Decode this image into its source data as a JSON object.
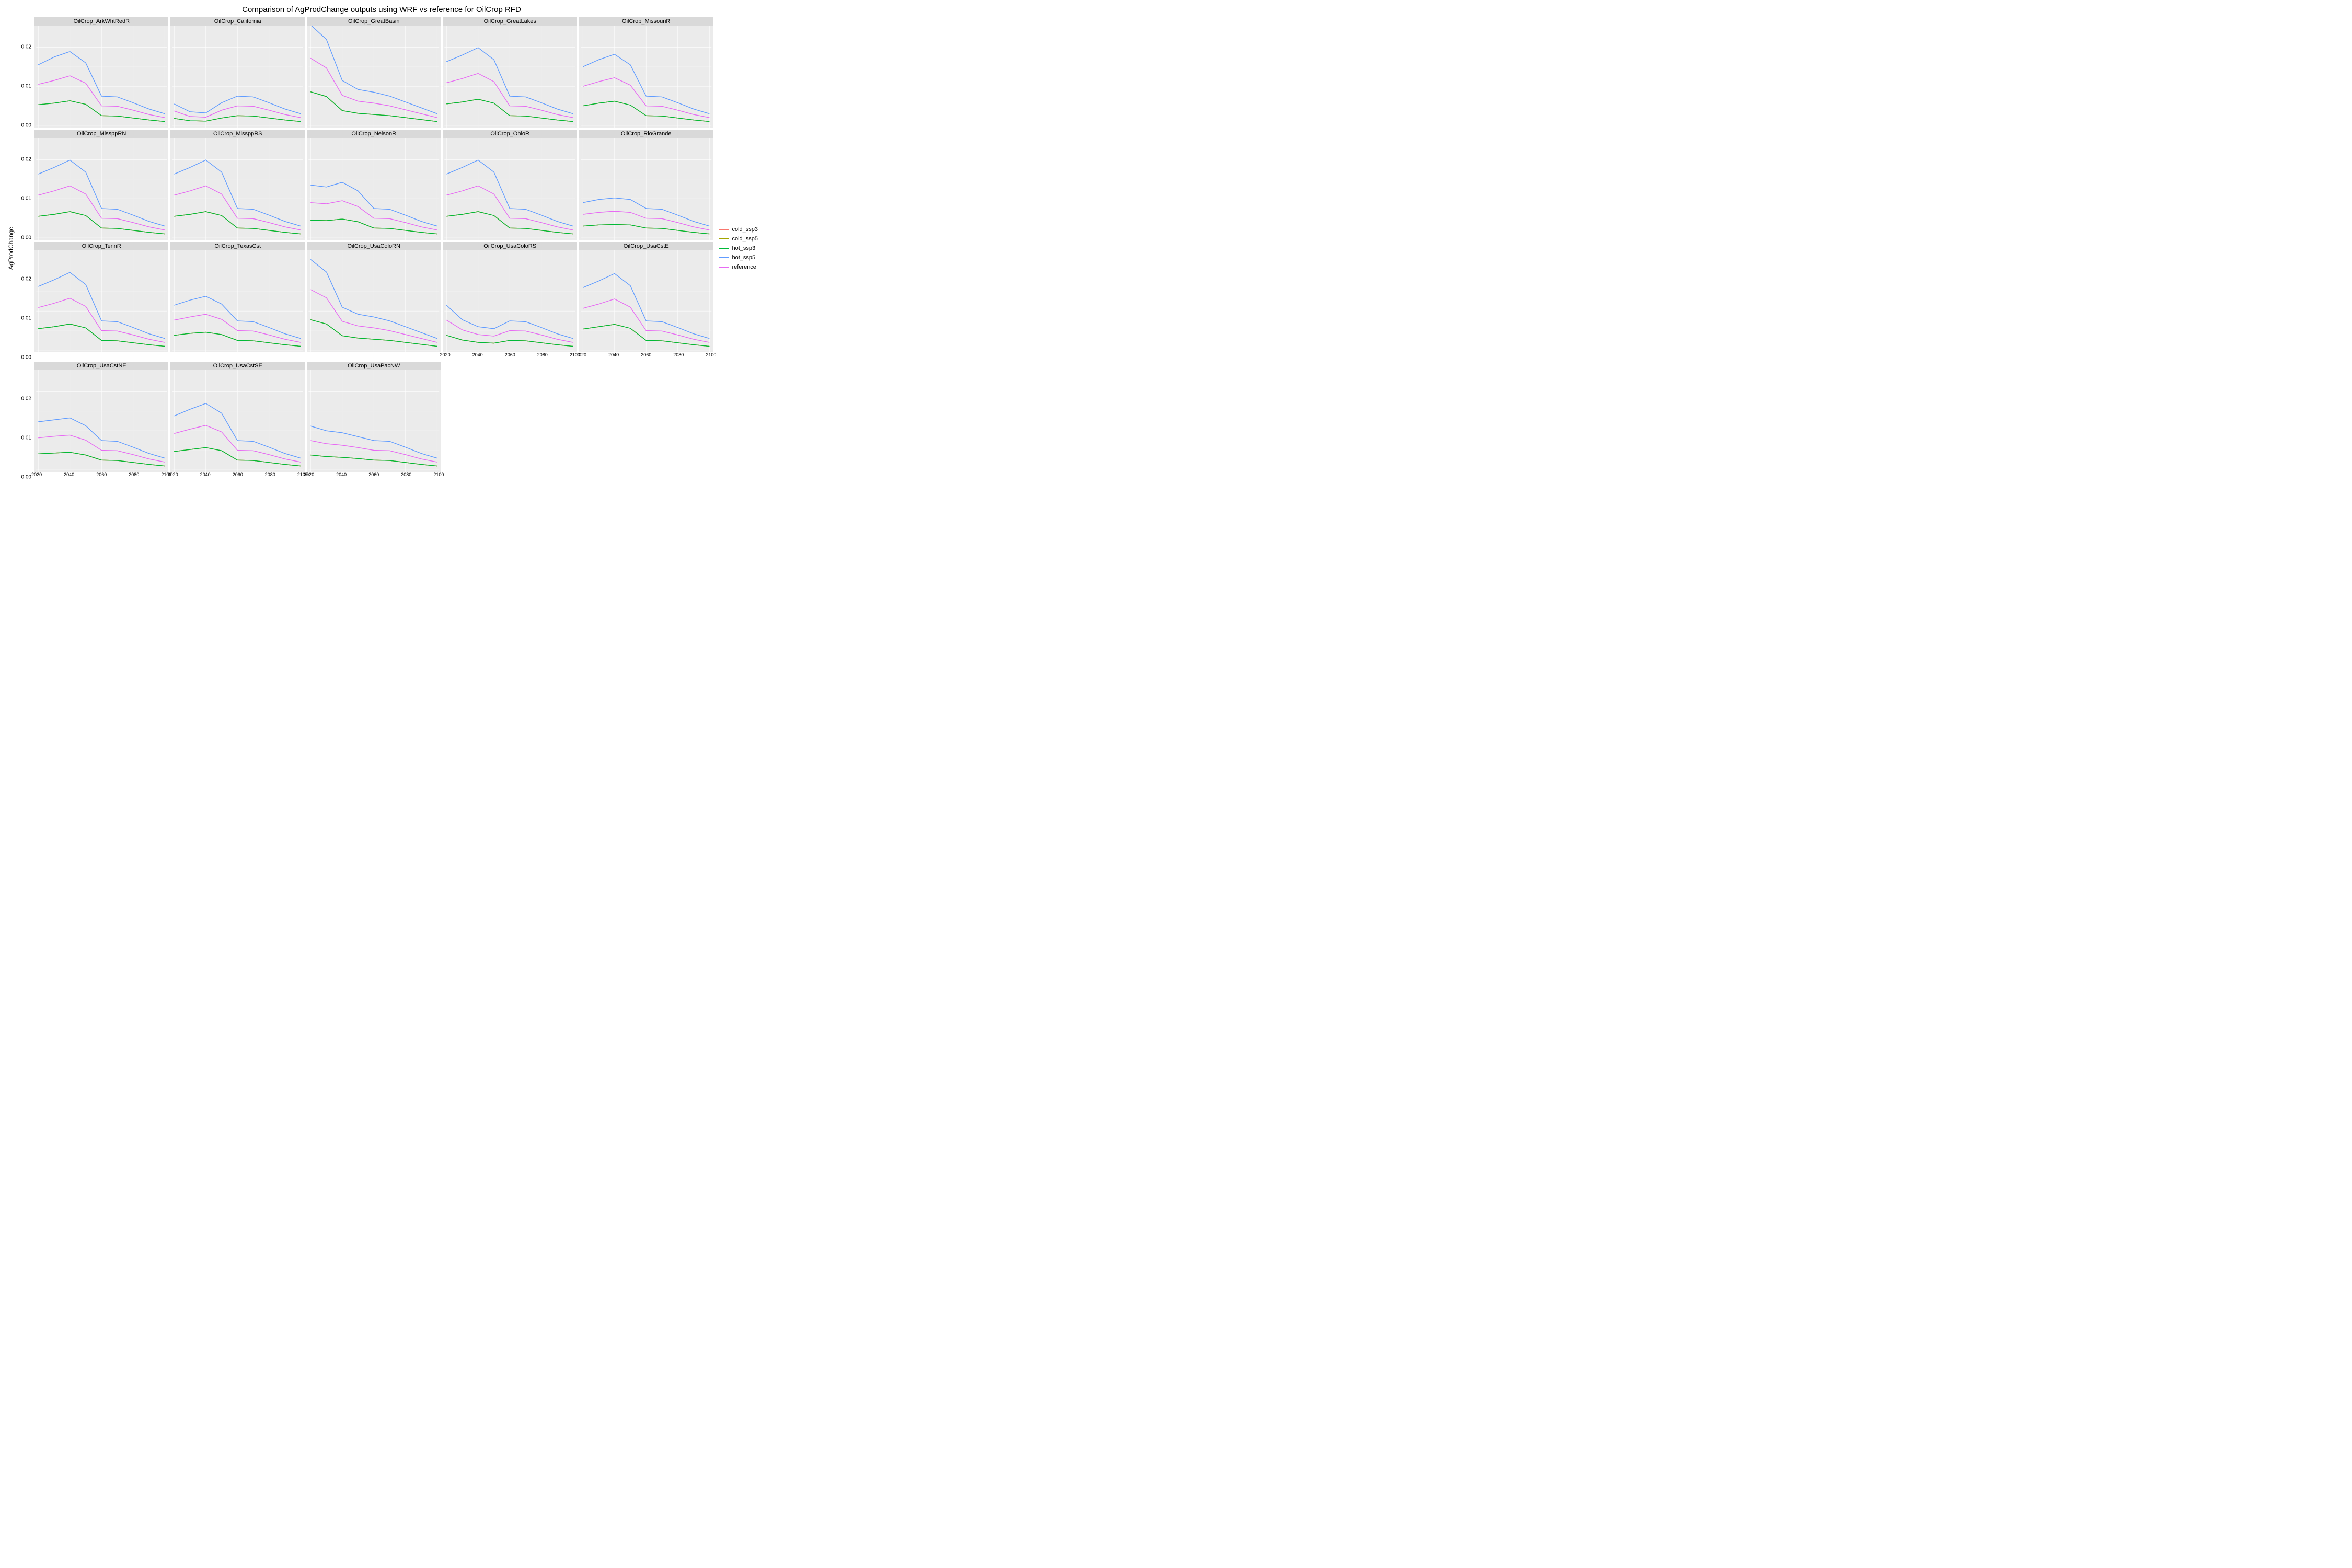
{
  "title": "Comparison of AgProdChange outputs using WRF vs reference for OilCrop RFD",
  "ylabel": "AgProdChange",
  "x": [
    2020,
    2030,
    2040,
    2050,
    2060,
    2070,
    2080,
    2090,
    2100
  ],
  "xticks": [
    2020,
    2040,
    2060,
    2080,
    2100
  ],
  "ylim": [
    0,
    0.025
  ],
  "yticks": [
    0.0,
    0.01,
    0.02
  ],
  "panel_bg": "#ebebeb",
  "grid_color": "#ffffff",
  "strip_bg": "#d9d9d9",
  "series_meta": [
    {
      "key": "cold_ssp3",
      "label": "cold_ssp3",
      "color": "#f8766d"
    },
    {
      "key": "cold_ssp5",
      "label": "cold_ssp5",
      "color": "#a3a500"
    },
    {
      "key": "hot_ssp3",
      "label": "hot_ssp3",
      "color": "#00ba38"
    },
    {
      "key": "hot_ssp5",
      "label": "hot_ssp5",
      "color": "#619cff"
    },
    {
      "key": "reference",
      "label": "reference",
      "color": "#e76bf3"
    }
  ],
  "facets": [
    {
      "title": "OilCrop_ArkWhtRedR",
      "series": {
        "hot_ssp5": [
          0.0155,
          0.0175,
          0.0189,
          0.016,
          0.0075,
          0.0073,
          0.0058,
          0.0042,
          0.003
        ],
        "reference": [
          0.0105,
          0.0115,
          0.0127,
          0.0108,
          0.005,
          0.0049,
          0.0039,
          0.0028,
          0.002
        ],
        "hot_ssp3": [
          0.0053,
          0.0057,
          0.0063,
          0.0054,
          0.0025,
          0.0024,
          0.0019,
          0.0014,
          0.001
        ],
        "cold_ssp3": [
          0.0053,
          0.0057,
          0.0063,
          0.0054,
          0.0025,
          0.0024,
          0.0019,
          0.0014,
          0.001
        ],
        "cold_ssp5": [
          0.0053,
          0.0057,
          0.0063,
          0.0054,
          0.0025,
          0.0024,
          0.0019,
          0.0014,
          0.001
        ]
      }
    },
    {
      "title": "OilCrop_California",
      "series": {
        "hot_ssp5": [
          0.0055,
          0.0035,
          0.0032,
          0.0058,
          0.0075,
          0.0073,
          0.0058,
          0.0042,
          0.003
        ],
        "reference": [
          0.0037,
          0.0023,
          0.0021,
          0.0039,
          0.005,
          0.0049,
          0.0039,
          0.0028,
          0.002
        ],
        "hot_ssp3": [
          0.0018,
          0.0012,
          0.0011,
          0.0019,
          0.0025,
          0.0024,
          0.0019,
          0.0014,
          0.001
        ],
        "cold_ssp3": [
          0.0018,
          0.0012,
          0.0011,
          0.0019,
          0.0025,
          0.0024,
          0.0019,
          0.0014,
          0.001
        ],
        "cold_ssp5": [
          0.0018,
          0.0012,
          0.0011,
          0.0019,
          0.0025,
          0.0024,
          0.0019,
          0.0014,
          0.001
        ]
      }
    },
    {
      "title": "OilCrop_GreatBasin",
      "series": {
        "hot_ssp5": [
          0.0257,
          0.022,
          0.0115,
          0.0092,
          0.0085,
          0.0075,
          0.006,
          0.0045,
          0.003
        ],
        "reference": [
          0.0172,
          0.0147,
          0.0077,
          0.0062,
          0.0057,
          0.005,
          0.004,
          0.003,
          0.002
        ],
        "hot_ssp3": [
          0.0086,
          0.0074,
          0.0038,
          0.0031,
          0.0028,
          0.0025,
          0.002,
          0.0015,
          0.001
        ],
        "cold_ssp3": [
          0.0086,
          0.0074,
          0.0038,
          0.0031,
          0.0028,
          0.0025,
          0.002,
          0.0015,
          0.001
        ],
        "cold_ssp5": [
          0.0086,
          0.0074,
          0.0038,
          0.0031,
          0.0028,
          0.0025,
          0.002,
          0.0015,
          0.001
        ]
      }
    },
    {
      "title": "OilCrop_GreatLakes",
      "series": {
        "hot_ssp5": [
          0.0163,
          0.018,
          0.0199,
          0.0168,
          0.0075,
          0.0073,
          0.0058,
          0.0042,
          0.003
        ],
        "reference": [
          0.0109,
          0.012,
          0.0133,
          0.0112,
          0.005,
          0.0049,
          0.0039,
          0.0028,
          0.002
        ],
        "hot_ssp3": [
          0.0055,
          0.006,
          0.0067,
          0.0057,
          0.0025,
          0.0024,
          0.0019,
          0.0014,
          0.001
        ],
        "cold_ssp3": [
          0.0055,
          0.006,
          0.0067,
          0.0057,
          0.0025,
          0.0024,
          0.0019,
          0.0014,
          0.001
        ],
        "cold_ssp5": [
          0.0055,
          0.006,
          0.0067,
          0.0057,
          0.0025,
          0.0024,
          0.0019,
          0.0014,
          0.001
        ]
      }
    },
    {
      "title": "OilCrop_MissouriR",
      "series": {
        "hot_ssp5": [
          0.015,
          0.0168,
          0.0182,
          0.0155,
          0.0075,
          0.0073,
          0.0058,
          0.0042,
          0.003
        ],
        "reference": [
          0.01,
          0.0112,
          0.0122,
          0.0103,
          0.005,
          0.0049,
          0.0039,
          0.0028,
          0.002
        ],
        "hot_ssp3": [
          0.005,
          0.0057,
          0.0062,
          0.0052,
          0.0025,
          0.0024,
          0.0019,
          0.0014,
          0.001
        ],
        "cold_ssp3": [
          0.005,
          0.0057,
          0.0062,
          0.0052,
          0.0025,
          0.0024,
          0.0019,
          0.0014,
          0.001
        ],
        "cold_ssp5": [
          0.005,
          0.0057,
          0.0062,
          0.0052,
          0.0025,
          0.0024,
          0.0019,
          0.0014,
          0.001
        ]
      }
    },
    {
      "title": "OilCrop_MissppRN",
      "series": {
        "hot_ssp5": [
          0.0163,
          0.018,
          0.0199,
          0.0168,
          0.0075,
          0.0073,
          0.0058,
          0.0042,
          0.003
        ],
        "reference": [
          0.0109,
          0.012,
          0.0133,
          0.0112,
          0.005,
          0.0049,
          0.0039,
          0.0028,
          0.002
        ],
        "hot_ssp3": [
          0.0055,
          0.006,
          0.0067,
          0.0057,
          0.0025,
          0.0024,
          0.0019,
          0.0014,
          0.001
        ],
        "cold_ssp3": [
          0.0055,
          0.006,
          0.0067,
          0.0057,
          0.0025,
          0.0024,
          0.0019,
          0.0014,
          0.001
        ],
        "cold_ssp5": [
          0.0055,
          0.006,
          0.0067,
          0.0057,
          0.0025,
          0.0024,
          0.0019,
          0.0014,
          0.001
        ]
      }
    },
    {
      "title": "OilCrop_MissppRS",
      "series": {
        "hot_ssp5": [
          0.0163,
          0.018,
          0.0199,
          0.0168,
          0.0075,
          0.0073,
          0.0058,
          0.0042,
          0.003
        ],
        "reference": [
          0.0109,
          0.012,
          0.0133,
          0.0112,
          0.005,
          0.0049,
          0.0039,
          0.0028,
          0.002
        ],
        "hot_ssp3": [
          0.0055,
          0.006,
          0.0067,
          0.0057,
          0.0025,
          0.0024,
          0.0019,
          0.0014,
          0.001
        ],
        "cold_ssp3": [
          0.0055,
          0.006,
          0.0067,
          0.0057,
          0.0025,
          0.0024,
          0.0019,
          0.0014,
          0.001
        ],
        "cold_ssp5": [
          0.0055,
          0.006,
          0.0067,
          0.0057,
          0.0025,
          0.0024,
          0.0019,
          0.0014,
          0.001
        ]
      }
    },
    {
      "title": "OilCrop_NelsonR",
      "series": {
        "hot_ssp5": [
          0.0135,
          0.013,
          0.0142,
          0.012,
          0.0075,
          0.0073,
          0.0058,
          0.0042,
          0.003
        ],
        "reference": [
          0.009,
          0.0087,
          0.0095,
          0.008,
          0.005,
          0.0049,
          0.0039,
          0.0028,
          0.002
        ],
        "hot_ssp3": [
          0.0045,
          0.0044,
          0.0048,
          0.0041,
          0.0025,
          0.0024,
          0.0019,
          0.0014,
          0.001
        ],
        "cold_ssp3": [
          0.0045,
          0.0044,
          0.0048,
          0.0041,
          0.0025,
          0.0024,
          0.0019,
          0.0014,
          0.001
        ],
        "cold_ssp5": [
          0.0045,
          0.0044,
          0.0048,
          0.0041,
          0.0025,
          0.0024,
          0.0019,
          0.0014,
          0.001
        ]
      }
    },
    {
      "title": "OilCrop_OhioR",
      "series": {
        "hot_ssp5": [
          0.0163,
          0.018,
          0.0199,
          0.0168,
          0.0075,
          0.0073,
          0.0058,
          0.0042,
          0.003
        ],
        "reference": [
          0.0109,
          0.012,
          0.0133,
          0.0112,
          0.005,
          0.0049,
          0.0039,
          0.0028,
          0.002
        ],
        "hot_ssp3": [
          0.0055,
          0.006,
          0.0067,
          0.0057,
          0.0025,
          0.0024,
          0.0019,
          0.0014,
          0.001
        ],
        "cold_ssp3": [
          0.0055,
          0.006,
          0.0067,
          0.0057,
          0.0025,
          0.0024,
          0.0019,
          0.0014,
          0.001
        ],
        "cold_ssp5": [
          0.0055,
          0.006,
          0.0067,
          0.0057,
          0.0025,
          0.0024,
          0.0019,
          0.0014,
          0.001
        ]
      }
    },
    {
      "title": "OilCrop_RioGrande",
      "series": {
        "hot_ssp5": [
          0.009,
          0.0098,
          0.0102,
          0.0098,
          0.0075,
          0.0073,
          0.0058,
          0.0042,
          0.003
        ],
        "reference": [
          0.006,
          0.0065,
          0.0068,
          0.0065,
          0.005,
          0.0049,
          0.0039,
          0.0028,
          0.002
        ],
        "hot_ssp3": [
          0.003,
          0.0033,
          0.0034,
          0.0033,
          0.0025,
          0.0024,
          0.0019,
          0.0014,
          0.001
        ],
        "cold_ssp3": [
          0.003,
          0.0033,
          0.0034,
          0.0033,
          0.0025,
          0.0024,
          0.0019,
          0.0014,
          0.001
        ],
        "cold_ssp5": [
          0.003,
          0.0033,
          0.0034,
          0.0033,
          0.0025,
          0.0024,
          0.0019,
          0.0014,
          0.001
        ]
      }
    },
    {
      "title": "OilCrop_TennR",
      "series": {
        "hot_ssp5": [
          0.0163,
          0.018,
          0.0199,
          0.0168,
          0.0075,
          0.0073,
          0.0058,
          0.0042,
          0.003
        ],
        "reference": [
          0.0109,
          0.012,
          0.0133,
          0.0112,
          0.005,
          0.0049,
          0.0039,
          0.0028,
          0.002
        ],
        "hot_ssp3": [
          0.0055,
          0.006,
          0.0067,
          0.0057,
          0.0025,
          0.0024,
          0.0019,
          0.0014,
          0.001
        ],
        "cold_ssp3": [
          0.0055,
          0.006,
          0.0067,
          0.0057,
          0.0025,
          0.0024,
          0.0019,
          0.0014,
          0.001
        ],
        "cold_ssp5": [
          0.0055,
          0.006,
          0.0067,
          0.0057,
          0.0025,
          0.0024,
          0.0019,
          0.0014,
          0.001
        ]
      }
    },
    {
      "title": "OilCrop_TexasCst",
      "series": {
        "hot_ssp5": [
          0.0115,
          0.0128,
          0.0138,
          0.0118,
          0.0075,
          0.0073,
          0.0058,
          0.0042,
          0.003
        ],
        "reference": [
          0.0077,
          0.0085,
          0.0092,
          0.0079,
          0.005,
          0.0049,
          0.0039,
          0.0028,
          0.002
        ],
        "hot_ssp3": [
          0.0038,
          0.0043,
          0.0046,
          0.004,
          0.0025,
          0.0024,
          0.0019,
          0.0014,
          0.001
        ],
        "cold_ssp3": [
          0.0038,
          0.0043,
          0.0046,
          0.004,
          0.0025,
          0.0024,
          0.0019,
          0.0014,
          0.001
        ],
        "cold_ssp5": [
          0.0038,
          0.0043,
          0.0046,
          0.004,
          0.0025,
          0.0024,
          0.0019,
          0.0014,
          0.001
        ]
      }
    },
    {
      "title": "OilCrop_UsaColoRN",
      "series": {
        "hot_ssp5": [
          0.0232,
          0.02,
          0.011,
          0.0092,
          0.0085,
          0.0075,
          0.006,
          0.0045,
          0.003
        ],
        "reference": [
          0.0155,
          0.0134,
          0.0074,
          0.0062,
          0.0057,
          0.005,
          0.004,
          0.003,
          0.002
        ],
        "hot_ssp3": [
          0.0078,
          0.0067,
          0.0037,
          0.0031,
          0.0028,
          0.0025,
          0.002,
          0.0015,
          0.001
        ],
        "cold_ssp3": [
          0.0078,
          0.0067,
          0.0037,
          0.0031,
          0.0028,
          0.0025,
          0.002,
          0.0015,
          0.001
        ],
        "cold_ssp5": [
          0.0078,
          0.0067,
          0.0037,
          0.0031,
          0.0028,
          0.0025,
          0.002,
          0.0015,
          0.001
        ]
      }
    },
    {
      "title": "OilCrop_UsaColoRS",
      "series": {
        "hot_ssp5": [
          0.0115,
          0.0078,
          0.006,
          0.0055,
          0.0075,
          0.0073,
          0.0058,
          0.0042,
          0.003
        ],
        "reference": [
          0.0077,
          0.0052,
          0.004,
          0.0036,
          0.005,
          0.0049,
          0.0039,
          0.0028,
          0.002
        ],
        "hot_ssp3": [
          0.0038,
          0.0026,
          0.002,
          0.0018,
          0.0025,
          0.0024,
          0.0019,
          0.0014,
          0.001
        ],
        "cold_ssp3": [
          0.0038,
          0.0026,
          0.002,
          0.0018,
          0.0025,
          0.0024,
          0.0019,
          0.0014,
          0.001
        ],
        "cold_ssp5": [
          0.0038,
          0.0026,
          0.002,
          0.0018,
          0.0025,
          0.0024,
          0.0019,
          0.0014,
          0.001
        ]
      }
    },
    {
      "title": "OilCrop_UsaCstE",
      "series": {
        "hot_ssp5": [
          0.016,
          0.0177,
          0.0196,
          0.0165,
          0.0075,
          0.0073,
          0.0058,
          0.0042,
          0.003
        ],
        "reference": [
          0.0107,
          0.0118,
          0.0131,
          0.011,
          0.005,
          0.0049,
          0.0039,
          0.0028,
          0.002
        ],
        "hot_ssp3": [
          0.0054,
          0.006,
          0.0066,
          0.0056,
          0.0025,
          0.0024,
          0.0019,
          0.0014,
          0.001
        ],
        "cold_ssp3": [
          0.0054,
          0.006,
          0.0066,
          0.0056,
          0.0025,
          0.0024,
          0.0019,
          0.0014,
          0.001
        ],
        "cold_ssp5": [
          0.0054,
          0.006,
          0.0066,
          0.0056,
          0.0025,
          0.0024,
          0.0019,
          0.0014,
          0.001
        ]
      }
    },
    {
      "title": "OilCrop_UsaCstNE",
      "series": {
        "hot_ssp5": [
          0.0123,
          0.0128,
          0.0133,
          0.0113,
          0.0075,
          0.0073,
          0.0058,
          0.0042,
          0.003
        ],
        "reference": [
          0.0082,
          0.0086,
          0.0089,
          0.0076,
          0.005,
          0.0049,
          0.0039,
          0.0028,
          0.002
        ],
        "hot_ssp3": [
          0.0041,
          0.0043,
          0.0045,
          0.0038,
          0.0025,
          0.0024,
          0.0019,
          0.0014,
          0.001
        ],
        "cold_ssp3": [
          0.0041,
          0.0043,
          0.0045,
          0.0038,
          0.0025,
          0.0024,
          0.0019,
          0.0014,
          0.001
        ],
        "cold_ssp5": [
          0.0041,
          0.0043,
          0.0045,
          0.0038,
          0.0025,
          0.0024,
          0.0019,
          0.0014,
          0.001
        ]
      }
    },
    {
      "title": "OilCrop_UsaCstSE",
      "series": {
        "hot_ssp5": [
          0.0138,
          0.0155,
          0.017,
          0.0145,
          0.0075,
          0.0073,
          0.0058,
          0.0042,
          0.003
        ],
        "reference": [
          0.0093,
          0.0104,
          0.0114,
          0.0097,
          0.005,
          0.0049,
          0.0039,
          0.0028,
          0.002
        ],
        "hot_ssp3": [
          0.0047,
          0.0052,
          0.0057,
          0.0049,
          0.0025,
          0.0024,
          0.0019,
          0.0014,
          0.001
        ],
        "cold_ssp3": [
          0.0047,
          0.0052,
          0.0057,
          0.0049,
          0.0025,
          0.0024,
          0.0019,
          0.0014,
          0.001
        ],
        "cold_ssp5": [
          0.0047,
          0.0052,
          0.0057,
          0.0049,
          0.0025,
          0.0024,
          0.0019,
          0.0014,
          0.001
        ]
      }
    },
    {
      "title": "OilCrop_UsaPacNW",
      "series": {
        "hot_ssp5": [
          0.0112,
          0.01,
          0.0095,
          0.0085,
          0.0075,
          0.0073,
          0.0058,
          0.0042,
          0.003
        ],
        "reference": [
          0.0075,
          0.0067,
          0.0063,
          0.0057,
          0.005,
          0.0049,
          0.0039,
          0.0028,
          0.002
        ],
        "hot_ssp3": [
          0.0038,
          0.0034,
          0.0032,
          0.0029,
          0.0025,
          0.0024,
          0.0019,
          0.0014,
          0.001
        ],
        "cold_ssp3": [
          0.0038,
          0.0034,
          0.0032,
          0.0029,
          0.0025,
          0.0024,
          0.0019,
          0.0014,
          0.001
        ],
        "cold_ssp5": [
          0.0038,
          0.0034,
          0.0032,
          0.0029,
          0.0025,
          0.0024,
          0.0019,
          0.0014,
          0.001
        ]
      }
    }
  ]
}
